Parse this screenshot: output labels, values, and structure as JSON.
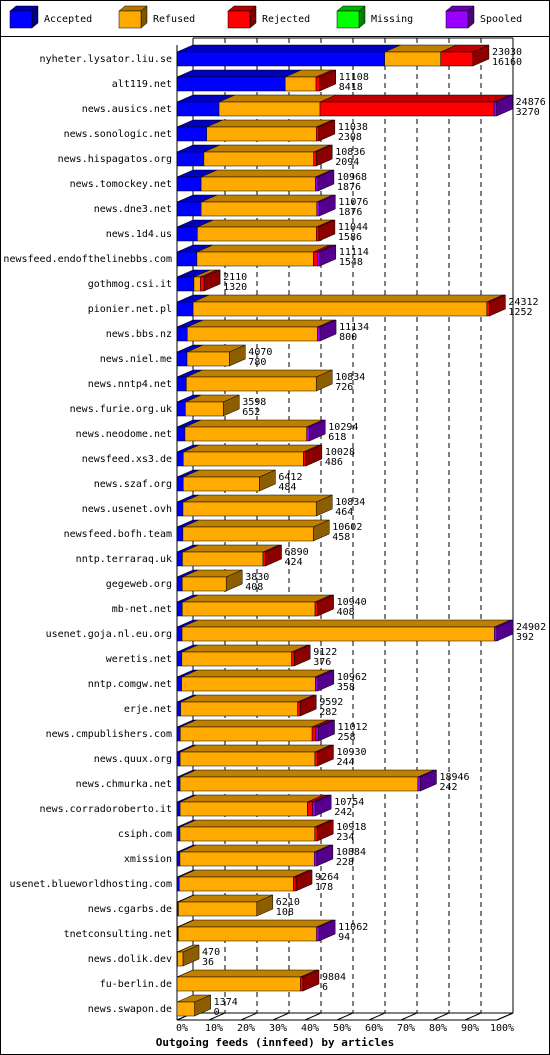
{
  "chart_data": {
    "type": "bar3d",
    "x_label": "Outgoing feeds (innfeed) by articles",
    "categories": [
      "nyheter.lysator.liu.se",
      "alt119.net",
      "news.ausics.net",
      "news.sonologic.net",
      "news.hispagatos.org",
      "news.tomockey.net",
      "news.dne3.net",
      "news.1d4.us",
      "newsfeed.endofthelinebbs.com",
      "gothmog.csi.it",
      "pionier.net.pl",
      "news.bbs.nz",
      "news.niel.me",
      "news.nntp4.net",
      "news.furie.org.uk",
      "news.neodome.net",
      "newsfeed.xs3.de",
      "news.szaf.org",
      "news.usenet.ovh",
      "newsfeed.bofh.team",
      "nntp.terraraq.uk",
      "gegeweb.org",
      "mb-net.net",
      "usenet.goja.nl.eu.org",
      "weretis.net",
      "nntp.comgw.net",
      "erje.net",
      "news.cmpublishers.com",
      "news.quux.org",
      "news.chmurka.net",
      "news.corradoroberto.it",
      "csiph.com",
      "xmission",
      "usenet.blueworldhosting.com",
      "news.cgarbs.de",
      "tnetconsulting.net",
      "news.dolik.dev",
      "fu-berlin.de",
      "news.swapon.de"
    ],
    "totals": [
      23030,
      11108,
      24876,
      11038,
      10836,
      10968,
      11076,
      11044,
      11114,
      2110,
      24312,
      11134,
      4070,
      10834,
      3598,
      10294,
      10028,
      6412,
      10834,
      10602,
      6890,
      3830,
      10940,
      24902,
      9122,
      10962,
      9592,
      11012,
      10930,
      18946,
      10754,
      10918,
      10884,
      9264,
      6210,
      11062,
      470,
      9804,
      1374
    ],
    "series": [
      {
        "name": "Accepted",
        "color": "#0000ff",
        "values": [
          16160,
          8418,
          3270,
          2308,
          2094,
          1876,
          1876,
          1586,
          1548,
          1320,
          1252,
          800,
          780,
          726,
          652,
          618,
          486,
          484,
          464,
          458,
          424,
          408,
          408,
          392,
          376,
          358,
          282,
          258,
          244,
          242,
          242,
          234,
          228,
          178,
          108,
          94,
          36,
          6,
          0
        ]
      },
      {
        "name": "Refused",
        "color": "#ffaa00",
        "values": [
          4360,
          2400,
          7860,
          8530,
          8542,
          8892,
          9000,
          9258,
          9066,
          490,
          22860,
          10134,
          3290,
          10108,
          2946,
          9476,
          9342,
          5928,
          10370,
          10144,
          6266,
          3422,
          10332,
          24310,
          8546,
          10404,
          9110,
          10254,
          10486,
          18504,
          9912,
          10484,
          10456,
          8886,
          6102,
          10768,
          434,
          9598,
          1374
        ]
      },
      {
        "name": "Rejected",
        "color": "#ff0000",
        "values": [
          2510,
          290,
          13546,
          200,
          200,
          0,
          0,
          200,
          300,
          300,
          200,
          0,
          0,
          0,
          0,
          0,
          200,
          0,
          0,
          0,
          200,
          0,
          200,
          0,
          200,
          0,
          200,
          300,
          200,
          0,
          400,
          200,
          0,
          200,
          0,
          0,
          0,
          200,
          0
        ]
      },
      {
        "name": "Missing",
        "color": "#00ff00",
        "values": [
          0,
          0,
          0,
          0,
          0,
          0,
          0,
          0,
          0,
          0,
          0,
          0,
          0,
          0,
          0,
          0,
          0,
          0,
          0,
          0,
          0,
          0,
          0,
          0,
          0,
          0,
          0,
          0,
          0,
          0,
          0,
          0,
          0,
          0,
          0,
          0,
          0,
          0,
          0
        ]
      },
      {
        "name": "Spooled",
        "color": "#9900ff",
        "values": [
          0,
          0,
          200,
          0,
          0,
          200,
          200,
          0,
          200,
          0,
          0,
          200,
          0,
          0,
          0,
          200,
          0,
          0,
          0,
          0,
          0,
          0,
          0,
          200,
          0,
          200,
          0,
          200,
          0,
          200,
          200,
          0,
          200,
          0,
          0,
          200,
          0,
          0,
          0
        ]
      }
    ],
    "xlim": [
      0,
      24902
    ],
    "xticks": [
      {
        "value": 0,
        "label": "0%"
      },
      {
        "value": 2490.2,
        "label": "10%"
      },
      {
        "value": 4980.4,
        "label": "20%"
      },
      {
        "value": 7470.6,
        "label": "30%"
      },
      {
        "value": 9960.8,
        "label": "40%"
      },
      {
        "value": 12451,
        "label": "50%"
      },
      {
        "value": 14941.2,
        "label": "60%"
      },
      {
        "value": 17431.4,
        "label": "70%"
      },
      {
        "value": 19921.6,
        "label": "80%"
      },
      {
        "value": 22411.8,
        "label": "90%"
      },
      {
        "value": 24902,
        "label": "100%"
      }
    ],
    "grid": true
  }
}
